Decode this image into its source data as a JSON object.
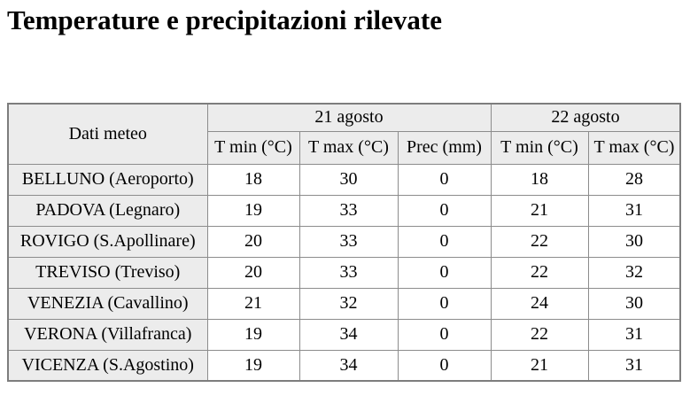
{
  "page": {
    "title": "Temperature e precipitazioni rilevate"
  },
  "chart_data": {
    "type": "table",
    "title": "Temperature e precipitazioni rilevate",
    "corner_header": "Dati meteo",
    "column_groups": [
      {
        "label": "21 agosto",
        "columns": [
          "T min (°C)",
          "T max (°C)",
          "Prec (mm)"
        ]
      },
      {
        "label": "22 agosto",
        "columns": [
          "T min (°C)",
          "T max (°C)"
        ]
      }
    ],
    "sub_headers": [
      "T min (°C)",
      "T max (°C)",
      "Prec (mm)",
      "T min (°C)",
      "T max (°C)"
    ],
    "rows": [
      {
        "station": "BELLUNO (Aeroporto)",
        "values": [
          18,
          30,
          0,
          18,
          28
        ]
      },
      {
        "station": "PADOVA (Legnaro)",
        "values": [
          19,
          33,
          0,
          21,
          31
        ]
      },
      {
        "station": "ROVIGO (S.Apollinare)",
        "values": [
          20,
          33,
          0,
          22,
          30
        ]
      },
      {
        "station": "TREVISO (Treviso)",
        "values": [
          20,
          33,
          0,
          22,
          32
        ]
      },
      {
        "station": "VENEZIA (Cavallino)",
        "values": [
          21,
          32,
          0,
          24,
          30
        ]
      },
      {
        "station": "VERONA (Villafranca)",
        "values": [
          19,
          34,
          0,
          22,
          31
        ]
      },
      {
        "station": "VICENZA (S.Agostino)",
        "values": [
          19,
          34,
          0,
          21,
          31
        ]
      }
    ]
  },
  "colors": {
    "header_bg": "#ececec",
    "cell_bg": "#ffffff",
    "border_outer": "#7d7d7d",
    "border_inner": "#8c8c8c",
    "text": "#000000"
  }
}
